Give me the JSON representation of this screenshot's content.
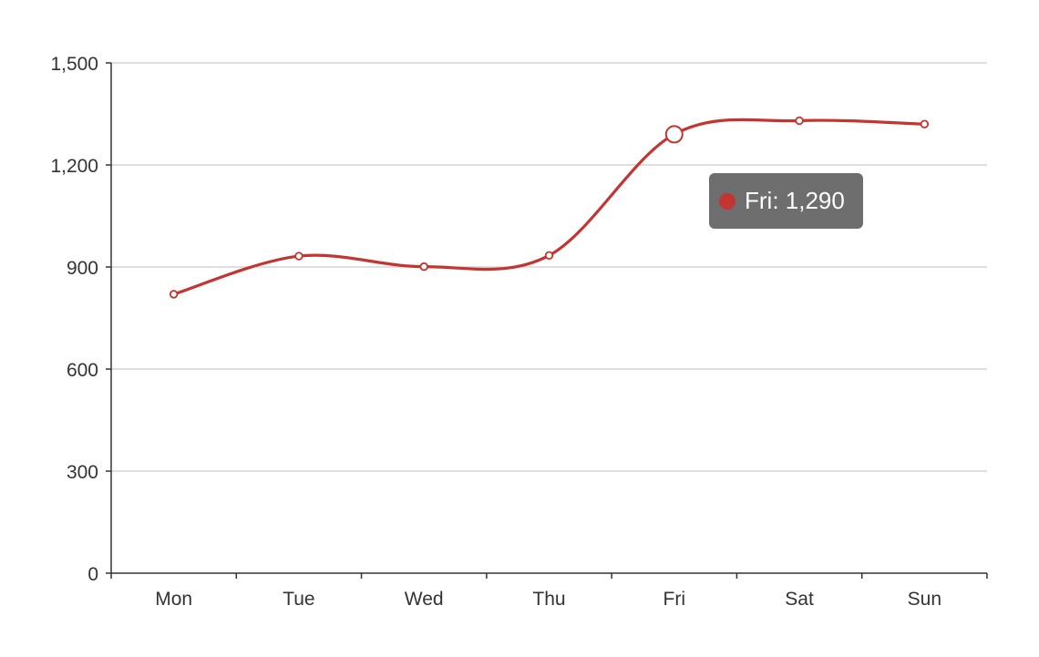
{
  "chart_data": {
    "type": "line",
    "smooth": true,
    "categories": [
      "Mon",
      "Tue",
      "Wed",
      "Thu",
      "Fri",
      "Sat",
      "Sun"
    ],
    "values": [
      820,
      932,
      901,
      934,
      1290,
      1330,
      1320
    ],
    "ylim": [
      0,
      1500
    ],
    "y_ticks": [
      0,
      300,
      600,
      900,
      1200,
      1500
    ],
    "y_tick_labels": [
      "0",
      "300",
      "600",
      "900",
      "1,200",
      "1,500"
    ],
    "grid": true,
    "colors": {
      "series": "#c23531",
      "grid": "#cccccc",
      "axis": "#333333",
      "label": "#333333"
    },
    "tooltip": {
      "category": "Fri",
      "text": "Fri: 1,290",
      "value": 1290
    }
  }
}
